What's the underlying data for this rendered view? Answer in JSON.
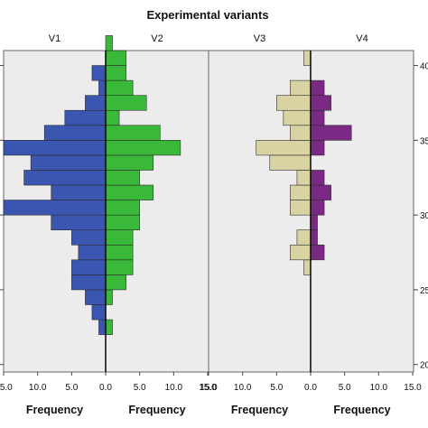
{
  "chart_data": {
    "type": "bar",
    "title": "Experimental variants",
    "xlabel": "Frequency",
    "y_ticks": [
      "20",
      "25",
      "30",
      "35",
      "40"
    ],
    "y_range": [
      19.5,
      41.0
    ],
    "x_ticks": [
      "15.0",
      "10.0",
      "5.0",
      "0.0",
      "5.0",
      "10.0",
      "15.0"
    ],
    "x_range": [
      0,
      15
    ],
    "panels": [
      {
        "panels_label": "left",
        "series": [
          {
            "name": "V1",
            "side": "left",
            "color": "#3a56b0",
            "bins": [
              {
                "y": 22.5,
                "value": 1
              },
              {
                "y": 23.5,
                "value": 2
              },
              {
                "y": 24.5,
                "value": 3
              },
              {
                "y": 25.5,
                "value": 5
              },
              {
                "y": 26.5,
                "value": 5
              },
              {
                "y": 27.5,
                "value": 4
              },
              {
                "y": 28.5,
                "value": 5
              },
              {
                "y": 29.5,
                "value": 8
              },
              {
                "y": 30.5,
                "value": 15
              },
              {
                "y": 31.5,
                "value": 8
              },
              {
                "y": 32.5,
                "value": 12
              },
              {
                "y": 33.5,
                "value": 11
              },
              {
                "y": 34.5,
                "value": 15
              },
              {
                "y": 35.5,
                "value": 9
              },
              {
                "y": 36.5,
                "value": 6
              },
              {
                "y": 37.5,
                "value": 3
              },
              {
                "y": 38.5,
                "value": 1
              },
              {
                "y": 39.5,
                "value": 2
              }
            ]
          },
          {
            "name": "V2",
            "side": "right",
            "color": "#3ab83a",
            "bins": [
              {
                "y": 22.5,
                "value": 1
              },
              {
                "y": 24.5,
                "value": 1
              },
              {
                "y": 25.5,
                "value": 3
              },
              {
                "y": 26.5,
                "value": 4
              },
              {
                "y": 27.5,
                "value": 4
              },
              {
                "y": 28.5,
                "value": 4
              },
              {
                "y": 29.5,
                "value": 5
              },
              {
                "y": 30.5,
                "value": 5
              },
              {
                "y": 31.5,
                "value": 7
              },
              {
                "y": 32.5,
                "value": 5
              },
              {
                "y": 33.5,
                "value": 7
              },
              {
                "y": 34.5,
                "value": 11
              },
              {
                "y": 35.5,
                "value": 8
              },
              {
                "y": 36.5,
                "value": 2
              },
              {
                "y": 37.5,
                "value": 6
              },
              {
                "y": 38.5,
                "value": 4
              },
              {
                "y": 39.5,
                "value": 3
              },
              {
                "y": 40.5,
                "value": 3
              },
              {
                "y": 41.5,
                "value": 1
              }
            ]
          }
        ]
      },
      {
        "panels_label": "right",
        "series": [
          {
            "name": "V3",
            "side": "left",
            "color": "#d9d3a3",
            "bins": [
              {
                "y": 26.5,
                "value": 1
              },
              {
                "y": 27.5,
                "value": 3
              },
              {
                "y": 28.5,
                "value": 2
              },
              {
                "y": 30.5,
                "value": 3
              },
              {
                "y": 31.5,
                "value": 3
              },
              {
                "y": 32.5,
                "value": 2
              },
              {
                "y": 33.5,
                "value": 6
              },
              {
                "y": 34.5,
                "value": 8
              },
              {
                "y": 35.5,
                "value": 3
              },
              {
                "y": 36.5,
                "value": 4
              },
              {
                "y": 37.5,
                "value": 5
              },
              {
                "y": 38.5,
                "value": 3
              },
              {
                "y": 40.5,
                "value": 1
              }
            ]
          },
          {
            "name": "V4",
            "side": "right",
            "color": "#7a2a84",
            "bins": [
              {
                "y": 27.5,
                "value": 2
              },
              {
                "y": 28.5,
                "value": 1
              },
              {
                "y": 29.5,
                "value": 1
              },
              {
                "y": 30.5,
                "value": 2
              },
              {
                "y": 31.5,
                "value": 3
              },
              {
                "y": 32.5,
                "value": 2
              },
              {
                "y": 34.5,
                "value": 2
              },
              {
                "y": 35.5,
                "value": 6
              },
              {
                "y": 36.5,
                "value": 2
              },
              {
                "y": 37.5,
                "value": 3
              },
              {
                "y": 38.5,
                "value": 2
              }
            ]
          }
        ]
      }
    ]
  }
}
